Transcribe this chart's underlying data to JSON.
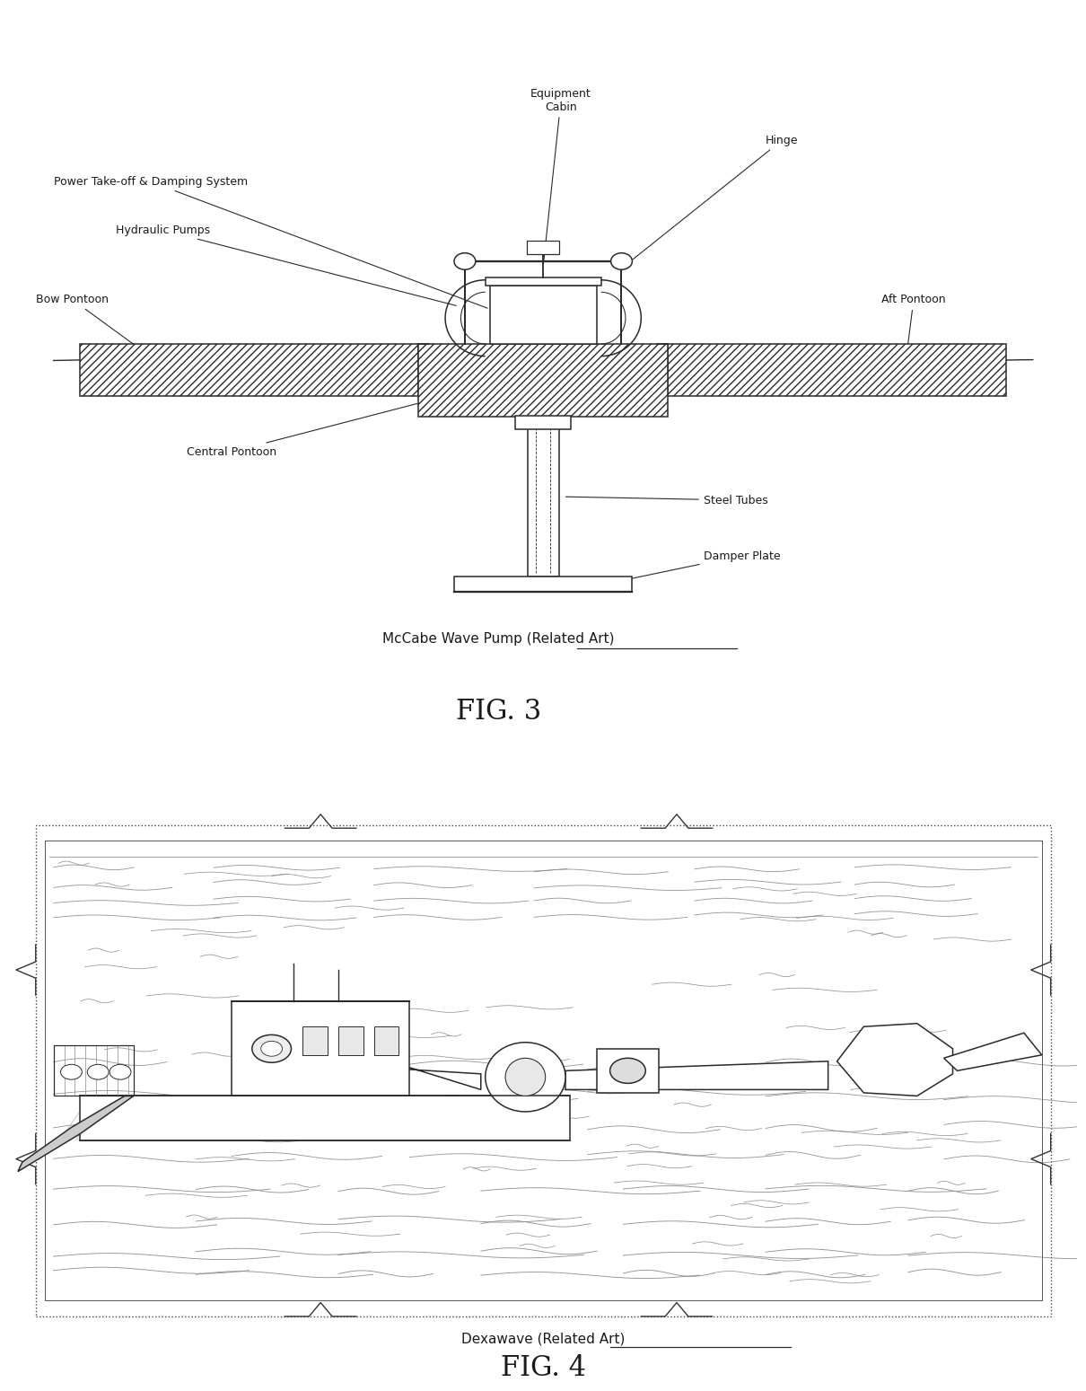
{
  "fig_width": 12.4,
  "fig_height": 15.42,
  "background_color": "#ffffff",
  "font_color": "#1a1a1a",
  "line_color": "#2a2a2a",
  "fig3_caption": "McCabe Wave Pump (Related Art)",
  "fig3_label": "FIG. 3",
  "fig4_caption": "Dexawave (Related Art)",
  "fig4_label": "FIG. 4",
  "fig3_labels": {
    "equipment_cabin": "Equipment\nCabin",
    "hinge": "Hinge",
    "power_takeoff": "Power Take-off & Damping System",
    "hydraulic_pumps": "Hydraulic Pumps",
    "bow_pontoon": "Bow Pontoon",
    "aft_pontoon": "Aft Pontoon",
    "central_pontoon": "Central Pontoon",
    "steel_tubes": "Steel Tubes",
    "damper_plate": "Damper Plate"
  }
}
